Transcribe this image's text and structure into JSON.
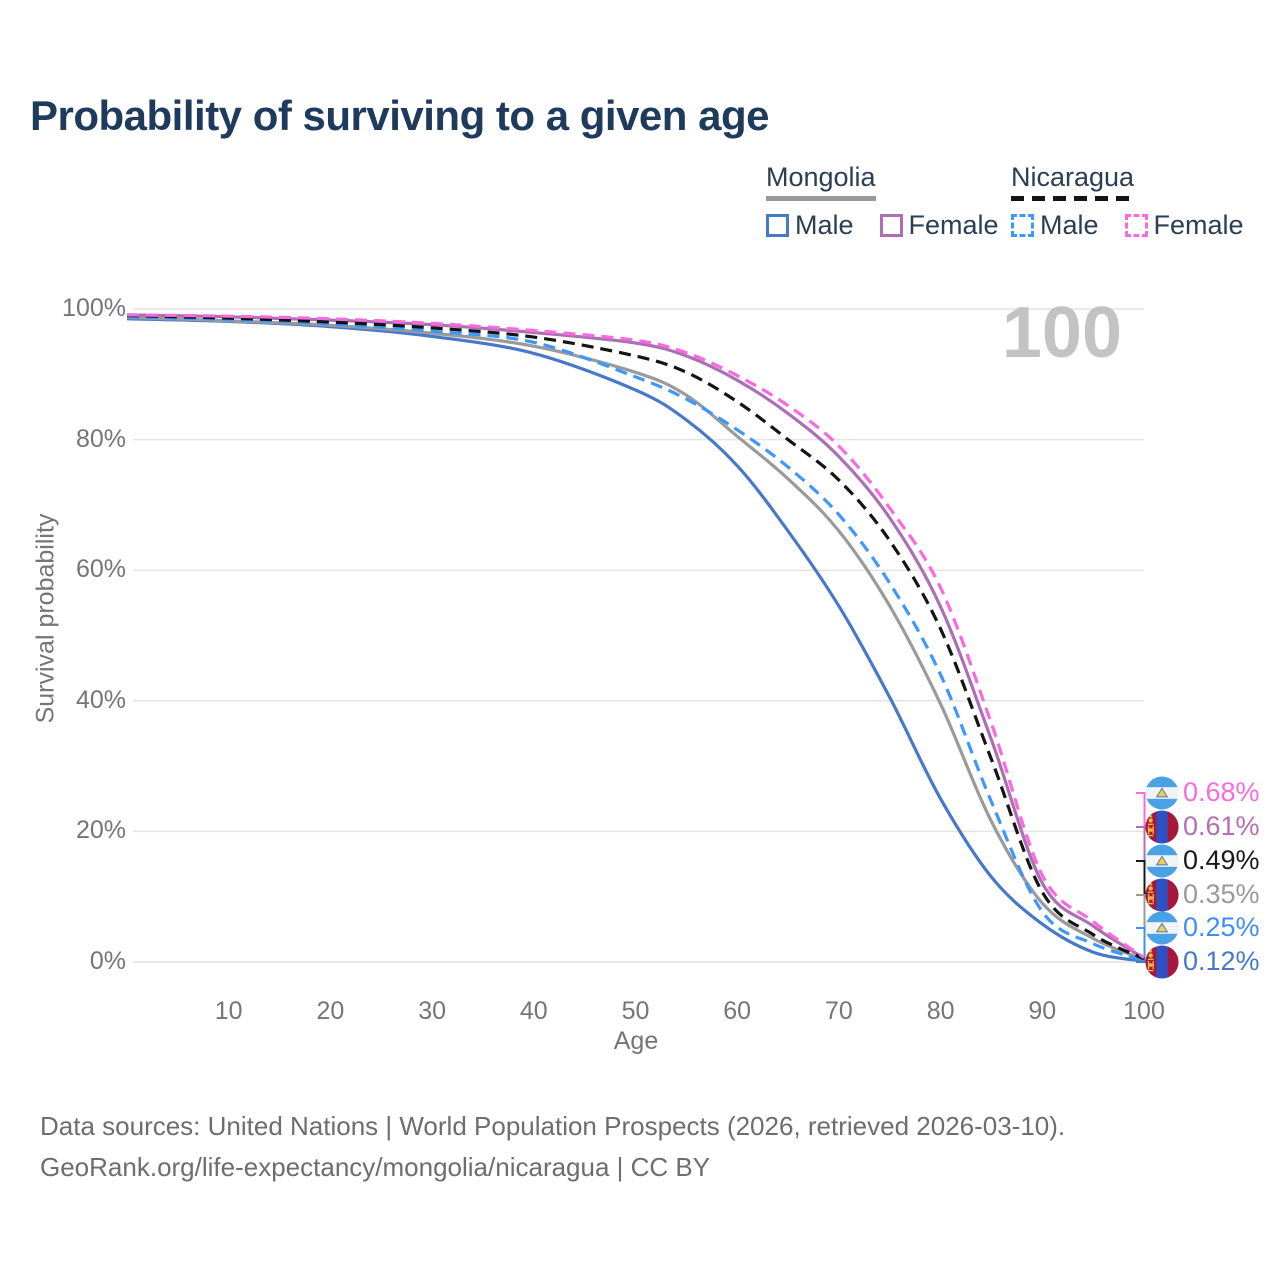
{
  "title": "Probability of surviving to a given age",
  "watermark": "100",
  "legend": {
    "groups": [
      {
        "name": "Mongolia",
        "line_style": "solid",
        "underline_color": "#999999",
        "items": [
          {
            "label": "Male",
            "color": "#4878c8",
            "dashed": false
          },
          {
            "label": "Female",
            "color": "#ac6fb4",
            "dashed": false
          }
        ]
      },
      {
        "name": "Nicaragua",
        "line_style": "dashed",
        "underline_color": "#141414",
        "items": [
          {
            "label": "Male",
            "color": "#3e97ff",
            "dashed": true
          },
          {
            "label": "Female",
            "color": "#f969df",
            "dashed": true
          }
        ]
      }
    ]
  },
  "axes": {
    "x": {
      "title": "Age",
      "tick_labels": [
        "10",
        "20",
        "30",
        "40",
        "50",
        "60",
        "70",
        "80",
        "90",
        "100"
      ],
      "tick_values": [
        10,
        20,
        30,
        40,
        50,
        60,
        70,
        80,
        90,
        100
      ]
    },
    "y": {
      "title": "Survival probability",
      "tick_labels": [
        "100%",
        "80%",
        "60%",
        "40%",
        "20%",
        "0%"
      ],
      "tick_values": [
        100,
        80,
        60,
        40,
        20,
        0
      ]
    }
  },
  "end_labels": [
    {
      "value": "0.68%",
      "series": "Nicaragua Female",
      "flag": "nicaragua-flag-icon",
      "color": "#f969df"
    },
    {
      "value": "0.61%",
      "series": "Mongolia Female",
      "flag": "mongolia-flag-icon",
      "color": "#b46eb4"
    },
    {
      "value": "0.49%",
      "series": "Nicaragua Both sexes",
      "flag": "nicaragua-flag-icon",
      "color": "#1a1a1a"
    },
    {
      "value": "0.35%",
      "series": "Mongolia Both sexes",
      "flag": "mongolia-flag-icon",
      "color": "#9a9a9a"
    },
    {
      "value": "0.25%",
      "series": "Nicaragua Male",
      "flag": "nicaragua-flag-icon",
      "color": "#3e8ff2"
    },
    {
      "value": "0.12%",
      "series": "Mongolia Male",
      "flag": "mongolia-flag-icon",
      "color": "#4878c8"
    }
  ],
  "footer": {
    "line1": "Data sources: United Nations | World Population Prospects (2026, retrieved 2026-03-10).",
    "line2": "GeoRank.org/life-expectancy/mongolia/nicaragua | CC BY"
  },
  "chart_data": {
    "type": "line",
    "title": "Probability of surviving to a given age",
    "xlabel": "Age",
    "ylabel": "Survival probability",
    "xlim": [
      0,
      100
    ],
    "ylim": [
      0,
      100
    ],
    "grid": "horizontal",
    "y_tick_format": "percent",
    "x": [
      0,
      10,
      20,
      30,
      40,
      50,
      55,
      60,
      65,
      70,
      75,
      80,
      85,
      90,
      95,
      100
    ],
    "series": [
      {
        "name": "Mongolia Male",
        "color": "#4878c8",
        "dashed": false,
        "values": [
          98.5,
          98.1,
          97.3,
          95.8,
          93.2,
          87.6,
          83.0,
          76.0,
          66.0,
          54.5,
          40.5,
          25.0,
          13.0,
          5.8,
          1.5,
          0.12
        ]
      },
      {
        "name": "Mongolia Both sexes",
        "color": "#9a9a9a",
        "dashed": false,
        "values": [
          98.7,
          98.2,
          97.5,
          96.3,
          94.3,
          90.3,
          86.8,
          80.5,
          74.0,
          66.0,
          54.5,
          39.5,
          21.5,
          9.0,
          3.6,
          0.35
        ]
      },
      {
        "name": "Mongolia Female",
        "color": "#ac6fb4",
        "dashed": false,
        "values": [
          99.1,
          98.8,
          98.3,
          97.6,
          96.4,
          94.8,
          92.8,
          89.1,
          84.0,
          77.4,
          68.0,
          54.4,
          34.0,
          12.1,
          5.5,
          0.61
        ]
      },
      {
        "name": "Nicaragua Male",
        "color": "#3e97ff",
        "dashed": true,
        "values": [
          98.8,
          98.4,
          97.7,
          96.6,
          94.9,
          89.6,
          86.2,
          81.5,
          75.8,
          68.5,
          58.0,
          44.0,
          24.5,
          7.7,
          2.8,
          0.25
        ]
      },
      {
        "name": "Nicaragua Both sexes",
        "color": "#141414",
        "dashed": true,
        "values": [
          99.0,
          98.6,
          98.0,
          97.1,
          95.7,
          92.8,
          90.3,
          85.8,
          80.0,
          73.8,
          64.5,
          51.0,
          31.0,
          10.7,
          4.2,
          0.49
        ]
      },
      {
        "name": "Nicaragua Female",
        "color": "#f969df",
        "dashed": true,
        "values": [
          99.1,
          98.9,
          98.5,
          97.8,
          96.7,
          95.2,
          93.3,
          89.8,
          85.2,
          79.0,
          69.5,
          57.3,
          36.5,
          13.3,
          6.2,
          0.68
        ]
      }
    ],
    "end_values_pct": {
      "nicaragua_female": 0.68,
      "mongolia_female": 0.61,
      "nicaragua_both": 0.49,
      "mongolia_both": 0.35,
      "nicaragua_male": 0.25,
      "mongolia_male": 0.12
    }
  }
}
